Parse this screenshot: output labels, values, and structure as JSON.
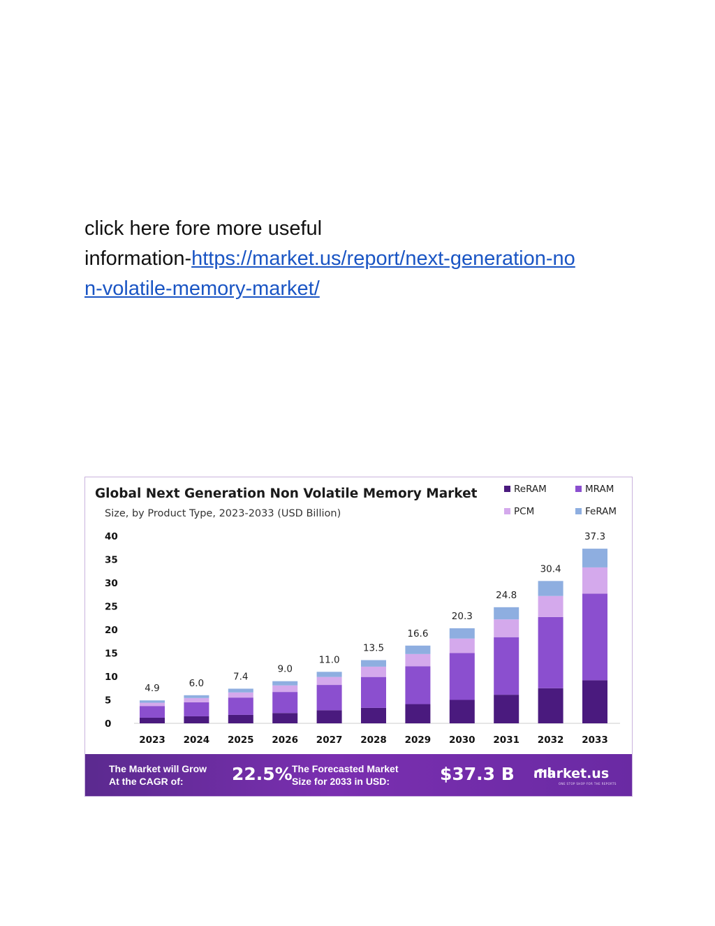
{
  "intro": {
    "line1": "click here fore more useful",
    "prefix": "information-",
    "link_part1": "https://market.us/report/next-generation-no",
    "link_part2": "n-volatile-memory-market/"
  },
  "chart_data": {
    "type": "bar",
    "stacked": true,
    "title": "Global Next Generation Non Volatile Memory Market",
    "subtitle": "Size, by Product Type, 2023-2033 (USD Billion)",
    "categories": [
      "2023",
      "2024",
      "2025",
      "2026",
      "2027",
      "2028",
      "2029",
      "2030",
      "2031",
      "2032",
      "2033"
    ],
    "totals": [
      4.9,
      6.0,
      7.4,
      9.0,
      11.0,
      13.5,
      16.6,
      20.3,
      24.8,
      30.4,
      37.3
    ],
    "total_labels": [
      "4.9",
      "6.0",
      "7.4",
      "9.0",
      "11.0",
      "13.5",
      "16.6",
      "20.3",
      "24.8",
      "30.4",
      "37.3"
    ],
    "series": [
      {
        "name": "ReRAM",
        "color": "#4a1a7e",
        "values": [
          1.2,
          1.5,
          1.8,
          2.2,
          2.8,
          3.3,
          4.1,
          5.0,
          6.1,
          7.5,
          9.2
        ]
      },
      {
        "name": "MRAM",
        "color": "#8b4fcf",
        "values": [
          2.5,
          3.0,
          3.7,
          4.5,
          5.4,
          6.6,
          8.1,
          10.0,
          12.3,
          15.2,
          18.5
        ]
      },
      {
        "name": "PCM",
        "color": "#d4a9ec",
        "values": [
          0.7,
          0.9,
          1.1,
          1.4,
          1.7,
          2.2,
          2.6,
          3.1,
          3.8,
          4.5,
          5.6
        ]
      },
      {
        "name": "FeRAM",
        "color": "#8eaee0",
        "values": [
          0.5,
          0.6,
          0.8,
          0.9,
          1.1,
          1.4,
          1.8,
          2.2,
          2.6,
          3.2,
          4.0
        ]
      }
    ],
    "ylim": [
      0,
      40
    ],
    "yticks": [
      "0",
      "5",
      "10",
      "15",
      "20",
      "25",
      "30",
      "35",
      "40"
    ],
    "xlabel": "",
    "ylabel": "",
    "grid": false,
    "legend": "top-right"
  },
  "banner": {
    "grow_line1": "The Market will Grow",
    "grow_line2": "At the CAGR of:",
    "cagr": "22.5%",
    "size_line1": "The Forecasted Market",
    "size_line2": "Size for 2033 in USD:",
    "size_value": "$37.3 B",
    "brand": "market.us",
    "tagline": "ONE STOP SHOP FOR THE REPORTS"
  }
}
